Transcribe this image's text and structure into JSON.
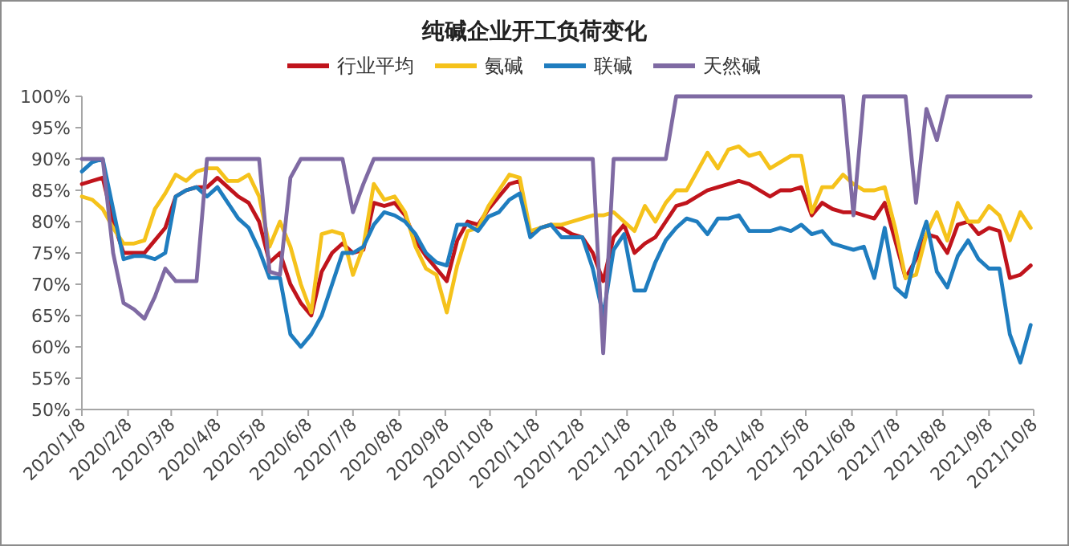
{
  "chart_data": {
    "type": "line",
    "title": "纯碱企业开工负荷变化",
    "legend": "top",
    "x": [
      "2020-01-08",
      "2020-01-15",
      "2020-01-22",
      "2020-01-29",
      "2020-02-05",
      "2020-02-12",
      "2020-02-19",
      "2020-02-26",
      "2020-03-04",
      "2020-03-11",
      "2020-03-18",
      "2020-03-25",
      "2020-04-01",
      "2020-04-08",
      "2020-04-15",
      "2020-04-22",
      "2020-04-29",
      "2020-05-06",
      "2020-05-13",
      "2020-05-20",
      "2020-05-27",
      "2020-06-03",
      "2020-06-10",
      "2020-06-17",
      "2020-06-24",
      "2020-07-01",
      "2020-07-08",
      "2020-07-15",
      "2020-07-22",
      "2020-07-29",
      "2020-08-05",
      "2020-08-12",
      "2020-08-19",
      "2020-08-26",
      "2020-09-02",
      "2020-09-09",
      "2020-09-16",
      "2020-09-23",
      "2020-09-30",
      "2020-10-07",
      "2020-10-14",
      "2020-10-21",
      "2020-10-28",
      "2020-11-04",
      "2020-11-11",
      "2020-11-18",
      "2020-11-25",
      "2020-12-02",
      "2020-12-09",
      "2020-12-16",
      "2020-12-23",
      "2020-12-30",
      "2021-01-06",
      "2021-01-13",
      "2021-01-20",
      "2021-01-27",
      "2021-02-03",
      "2021-02-10",
      "2021-02-17",
      "2021-02-24",
      "2021-03-03",
      "2021-03-10",
      "2021-03-17",
      "2021-03-24",
      "2021-03-31",
      "2021-04-07",
      "2021-04-14",
      "2021-04-21",
      "2021-04-28",
      "2021-05-05",
      "2021-05-12",
      "2021-05-19",
      "2021-05-26",
      "2021-06-02",
      "2021-06-09",
      "2021-06-16",
      "2021-06-23",
      "2021-06-30",
      "2021-07-07",
      "2021-07-14",
      "2021-07-21",
      "2021-07-28",
      "2021-08-04",
      "2021-08-11",
      "2021-08-18",
      "2021-08-25",
      "2021-09-01",
      "2021-09-08",
      "2021-09-15",
      "2021-09-22",
      "2021-09-29",
      "2021-10-06"
    ],
    "xlim": [
      "2020-01-08",
      "2021-10-08"
    ],
    "xticks": [
      {
        "value": "2020-01-08",
        "label": "2020/1/8"
      },
      {
        "value": "2020-02-08",
        "label": "2020/2/8"
      },
      {
        "value": "2020-03-08",
        "label": "2020/3/8"
      },
      {
        "value": "2020-04-08",
        "label": "2020/4/8"
      },
      {
        "value": "2020-05-08",
        "label": "2020/5/8"
      },
      {
        "value": "2020-06-08",
        "label": "2020/6/8"
      },
      {
        "value": "2020-07-08",
        "label": "2020/7/8"
      },
      {
        "value": "2020-08-08",
        "label": "2020/8/8"
      },
      {
        "value": "2020-09-08",
        "label": "2020/9/8"
      },
      {
        "value": "2020-10-08",
        "label": "2020/10/8"
      },
      {
        "value": "2020-11-08",
        "label": "2020/11/8"
      },
      {
        "value": "2020-12-08",
        "label": "2020/12/8"
      },
      {
        "value": "2021-01-08",
        "label": "2021/1/8"
      },
      {
        "value": "2021-02-08",
        "label": "2021/2/8"
      },
      {
        "value": "2021-03-08",
        "label": "2021/3/8"
      },
      {
        "value": "2021-04-08",
        "label": "2021/4/8"
      },
      {
        "value": "2021-05-08",
        "label": "2021/5/8"
      },
      {
        "value": "2021-06-08",
        "label": "2021/6/8"
      },
      {
        "value": "2021-07-08",
        "label": "2021/7/8"
      },
      {
        "value": "2021-08-08",
        "label": "2021/8/8"
      },
      {
        "value": "2021-09-08",
        "label": "2021/9/8"
      },
      {
        "value": "2021-10-08",
        "label": "2021/10/8"
      }
    ],
    "ylim": [
      50,
      100
    ],
    "yticks": [
      {
        "value": 50,
        "label": "50%"
      },
      {
        "value": 55,
        "label": "55%"
      },
      {
        "value": 60,
        "label": "60%"
      },
      {
        "value": 65,
        "label": "65%"
      },
      {
        "value": 70,
        "label": "70%"
      },
      {
        "value": 75,
        "label": "75%"
      },
      {
        "value": 80,
        "label": "80%"
      },
      {
        "value": 85,
        "label": "85%"
      },
      {
        "value": 90,
        "label": "90%"
      },
      {
        "value": 95,
        "label": "95%"
      },
      {
        "value": 100,
        "label": "100%"
      }
    ],
    "series": [
      {
        "name": "行业平均",
        "color": "#c0141c",
        "values": [
          86,
          86.5,
          87,
          80,
          75,
          75,
          75,
          77,
          79,
          84,
          85,
          85.5,
          85.5,
          87,
          85.5,
          84,
          83,
          80,
          73.5,
          75,
          70,
          67,
          65,
          72,
          75,
          76.5,
          75,
          75.5,
          83,
          82.5,
          83,
          81,
          77,
          74.5,
          72.5,
          70.5,
          77,
          80,
          79.5,
          82,
          84,
          86,
          86.5,
          78,
          79,
          79.5,
          79,
          78,
          77.5,
          75,
          70.5,
          77.5,
          79.5,
          75,
          76.5,
          77.5,
          80,
          82.5,
          83,
          84,
          85,
          85.5,
          86,
          86.5,
          86,
          85,
          84,
          85,
          85,
          85.5,
          81,
          83,
          82,
          81.5,
          81.5,
          81,
          80.5,
          83,
          77,
          71,
          74,
          78,
          77.5,
          75,
          79.5,
          80,
          78,
          79,
          78.5,
          71,
          71.5,
          73
        ]
      },
      {
        "name": "氨碱",
        "color": "#f5c21b",
        "values": [
          84,
          83.5,
          82,
          79,
          76.5,
          76.5,
          77,
          82,
          84.5,
          87.5,
          86.5,
          88,
          88.5,
          88.5,
          86.5,
          86.5,
          87.5,
          84,
          76,
          80,
          76,
          70,
          65.5,
          78,
          78.5,
          78,
          71.5,
          76,
          86,
          83.5,
          84,
          81.5,
          76,
          72.5,
          71.5,
          65.5,
          73,
          78.5,
          79,
          82.5,
          85,
          87.5,
          87,
          78.5,
          79,
          79.5,
          79.5,
          80,
          80.5,
          81,
          81,
          81.5,
          80,
          78.5,
          82.5,
          80,
          83,
          85,
          85,
          88,
          91,
          88.5,
          91.5,
          92,
          90.5,
          91,
          88.5,
          89.5,
          90.5,
          90.5,
          81.5,
          85.5,
          85.5,
          87.5,
          86,
          85,
          85,
          85.5,
          79,
          71,
          71.5,
          78,
          81.5,
          77,
          83,
          80,
          80,
          82.5,
          81,
          77,
          81.5,
          79
        ]
      },
      {
        "name": "联碱",
        "color": "#1f7dbf",
        "values": [
          88,
          89.5,
          90,
          82,
          74,
          74.5,
          74.5,
          74,
          75,
          84,
          85,
          85.5,
          84,
          85.5,
          83,
          80.5,
          79,
          75.5,
          71,
          71,
          62,
          60,
          62,
          65,
          70,
          75,
          75,
          76,
          79.5,
          81.5,
          81,
          80,
          78,
          75,
          73.5,
          73,
          79.5,
          79.5,
          78.5,
          80.8,
          81.5,
          83.5,
          84.5,
          77.5,
          79,
          79.5,
          77.5,
          77.5,
          77.5,
          72.5,
          65,
          75.5,
          78,
          69,
          69,
          73.5,
          77,
          79,
          80.5,
          80,
          78,
          80.5,
          80.5,
          81,
          78.5,
          78.5,
          78.5,
          79,
          78.5,
          79.5,
          78,
          78.5,
          76.5,
          76,
          75.5,
          76,
          71,
          79,
          69.5,
          68,
          75,
          80,
          72,
          69.5,
          74.5,
          77,
          74,
          72.5,
          72.5,
          62,
          57.5,
          63.5
        ]
      },
      {
        "name": "天然碱",
        "color": "#7f6aa3",
        "values": [
          90,
          90,
          90,
          75,
          67,
          66,
          64.5,
          68,
          72.5,
          70.5,
          70.5,
          70.5,
          90,
          90,
          90,
          90,
          90,
          90,
          72,
          71.5,
          87,
          90,
          90,
          90,
          90,
          90,
          81.5,
          86,
          90,
          90,
          90,
          90,
          90,
          90,
          90,
          90,
          90,
          90,
          90,
          90,
          90,
          90,
          90,
          90,
          90,
          90,
          90,
          90,
          90,
          90,
          59,
          90,
          90,
          90,
          90,
          90,
          90,
          100,
          100,
          100,
          100,
          100,
          100,
          100,
          100,
          100,
          100,
          100,
          100,
          100,
          100,
          100,
          100,
          100,
          81,
          100,
          100,
          100,
          100,
          100,
          83,
          98,
          93,
          100,
          100,
          100,
          100,
          100,
          100,
          100,
          100,
          100
        ]
      }
    ]
  }
}
